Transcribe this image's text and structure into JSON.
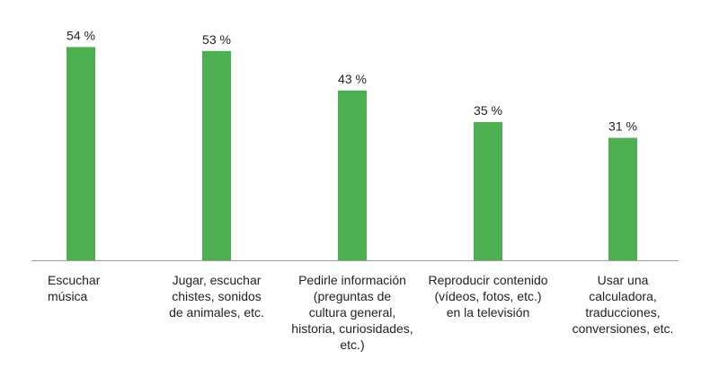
{
  "chart_data": {
    "type": "bar",
    "categories": [
      [
        "Escuchar",
        "música"
      ],
      [
        "Jugar, escuchar",
        "chistes, sonidos",
        "de animales, etc."
      ],
      [
        "Pedirle información",
        "(preguntas de",
        "cultura general,",
        "historia, curiosidades,",
        "etc.)"
      ],
      [
        "Reproducir contenido",
        "(vídeos, fotos, etc.)",
        "en la televisión"
      ],
      [
        "Usar una",
        "calculadora,",
        "traducciones,",
        "conversiones, etc."
      ]
    ],
    "values": [
      54,
      53,
      43,
      35,
      31
    ],
    "value_labels": [
      "54 %",
      "53 %",
      "43 %",
      "35 %",
      "31 %"
    ],
    "ylim": [
      0,
      60
    ],
    "grid": false,
    "bar_color": "#4caf50",
    "axis_color": "#9e9e9e"
  }
}
